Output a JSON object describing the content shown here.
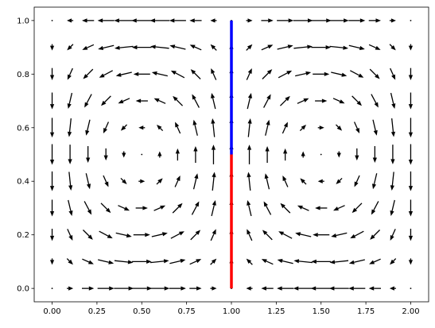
{
  "chart_data": {
    "type": "quiver",
    "title": "",
    "xlabel": "",
    "ylabel": "",
    "xlim": [
      -0.1,
      2.1
    ],
    "ylim": [
      -0.05,
      1.05
    ],
    "x_ticks": [
      {
        "value": 0.0,
        "label": "0.00"
      },
      {
        "value": 0.25,
        "label": "0.25"
      },
      {
        "value": 0.5,
        "label": "0.50"
      },
      {
        "value": 0.75,
        "label": "0.75"
      },
      {
        "value": 1.0,
        "label": "1.00"
      },
      {
        "value": 1.25,
        "label": "1.25"
      },
      {
        "value": 1.5,
        "label": "1.50"
      },
      {
        "value": 1.75,
        "label": "1.75"
      },
      {
        "value": 2.0,
        "label": "2.00"
      }
    ],
    "y_ticks": [
      {
        "value": 0.0,
        "label": "0.0"
      },
      {
        "value": 0.2,
        "label": "0.2"
      },
      {
        "value": 0.4,
        "label": "0.4"
      },
      {
        "value": 0.6,
        "label": "0.6"
      },
      {
        "value": 0.8,
        "label": "0.8"
      },
      {
        "value": 1.0,
        "label": "1.0"
      }
    ],
    "field": {
      "description": "two counter-rotating vortices, u = sin(pi x) cos(pi y), v = -cos(pi x) sin(pi y)",
      "x_range": [
        0,
        2
      ],
      "y_range": [
        0,
        1
      ],
      "nx": 21,
      "ny": 11,
      "arrow_color": "#000000"
    },
    "segments": [
      {
        "x": [
          1.0,
          1.0
        ],
        "y": [
          0.5,
          1.0
        ],
        "color": "#0000ff"
      },
      {
        "x": [
          1.0,
          1.0
        ],
        "y": [
          0.0,
          0.5
        ],
        "color": "#ff0000"
      }
    ],
    "grid": false,
    "legend": "none"
  }
}
